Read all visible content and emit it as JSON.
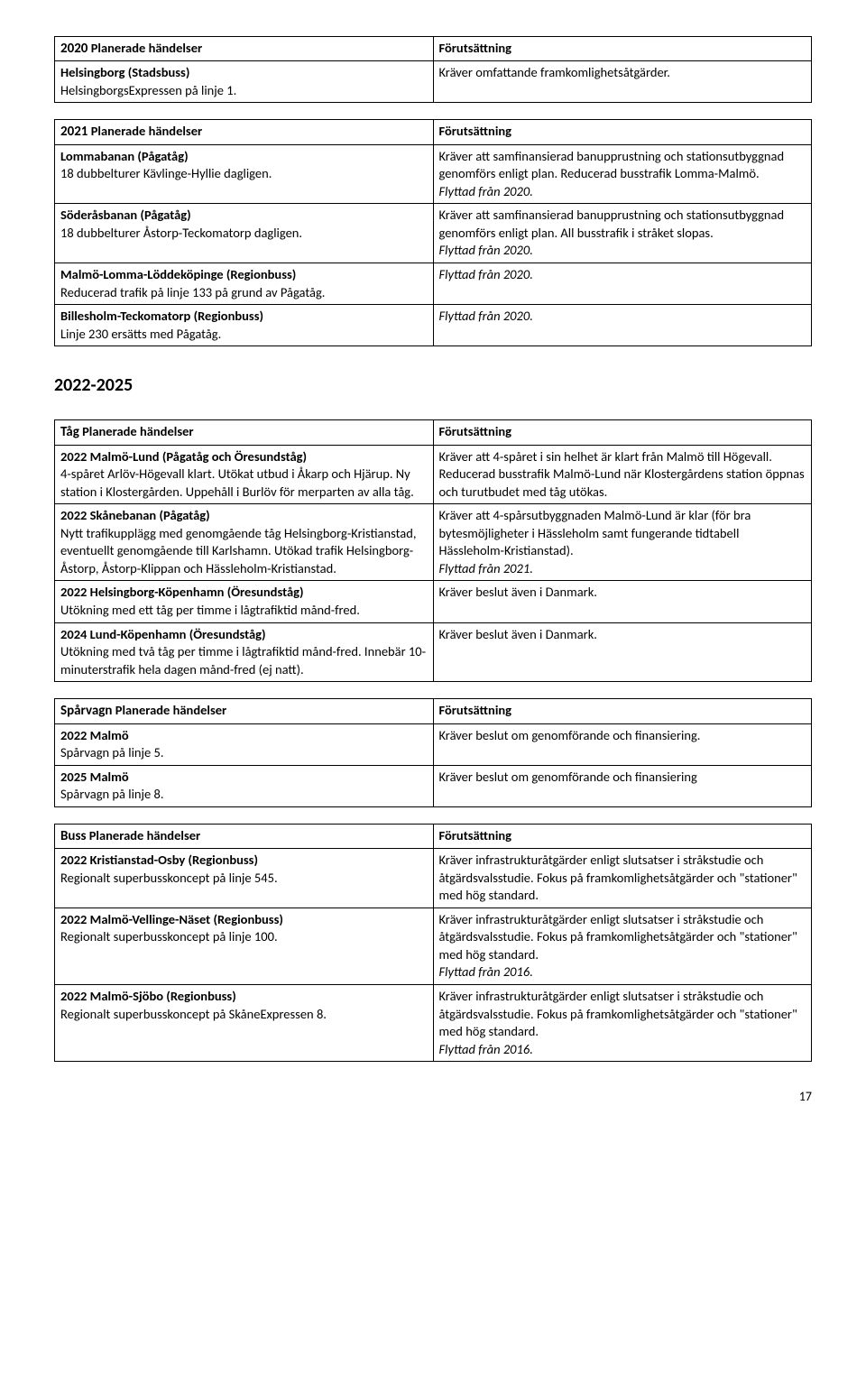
{
  "table1": {
    "header_left_strong": "2020",
    "header_left_rest": " Planerade händelser",
    "header_right": "Förutsättning",
    "rows": [
      {
        "l_title": "Helsingborg (Stadsbuss)",
        "l_body": "HelsingborgsExpressen på linje 1.",
        "r_body": "Kräver omfattande framkomlighetsåtgärder."
      }
    ]
  },
  "table2": {
    "header_left_strong": "2021",
    "header_left_rest": " Planerade händelser",
    "header_right": "Förutsättning",
    "rows": [
      {
        "l_title": "Lommabanan (Pågatåg)",
        "l_body": "18 dubbelturer Kävlinge-Hyllie dagligen.",
        "r_body": "Kräver att samfinansierad banupprustning och stationsutbyggnad genomförs enligt plan. Reducerad busstrafik Lomma-Malmö.",
        "r_italic": "Flyttad från 2020."
      },
      {
        "l_title": "Söderåsbanan (Pågatåg)",
        "l_body": "18 dubbelturer Åstorp-Teckomatorp dagligen.",
        "r_body": "Kräver att samfinansierad banupprustning och stationsutbyggnad genomförs enligt plan. All busstrafik i stråket slopas.",
        "r_italic": "Flyttad från 2020."
      },
      {
        "l_title": "Malmö-Lomma-Löddeköpinge (Regionbuss)",
        "l_body": "Reducerad trafik på linje 133 på grund av Pågatåg.",
        "r_italic": "Flyttad från 2020."
      },
      {
        "l_title": "Billesholm-Teckomatorp (Regionbuss)",
        "l_body": "Linje 230 ersätts med Pågatåg.",
        "r_italic": "Flyttad från 2020."
      }
    ]
  },
  "section_heading": "2022-2025",
  "table3": {
    "header_left_strong": "Tåg",
    "header_left_rest": " Planerade händelser",
    "header_right": "Förutsättning",
    "rows": [
      {
        "l_title": "2022 Malmö-Lund (Pågatåg och Öresundståg)",
        "l_body": "4-spåret Arlöv-Högevall klart. Utökat utbud i Åkarp och Hjärup. Ny station i Klostergården. Uppehåll i Burlöv för merparten av alla tåg.",
        "r_body": "Kräver att 4-spåret i sin helhet är klart från Malmö till Högevall. Reducerad busstrafik Malmö-Lund när Klostergårdens station öppnas och turutbudet med tåg utökas."
      },
      {
        "l_title": "2022 Skånebanan (Pågatåg)",
        "l_body": "Nytt trafikupplägg med genomgående tåg Helsingborg-Kristianstad, eventuellt genomgående till Karlshamn. Utökad trafik Helsingborg-Åstorp, Åstorp-Klippan och Hässleholm-Kristianstad.",
        "r_body": "Kräver att 4-spårsutbyggnaden Malmö-Lund är klar (för bra bytesmöjligheter i Hässleholm samt fungerande tidtabell Hässleholm-Kristianstad).",
        "r_italic": "Flyttad från 2021."
      },
      {
        "l_title": "2022 Helsingborg-Köpenhamn (Öresundståg)",
        "l_body": "Utökning med ett tåg per timme i lågtrafiktid månd-fred.",
        "r_body": "Kräver beslut även i Danmark."
      },
      {
        "l_title": "2024 Lund-Köpenhamn (Öresundståg)",
        "l_body": "Utökning med två tåg per timme i lågtrafiktid månd-fred. Innebär 10-minuterstrafik hela dagen månd-fred (ej natt).",
        "r_body": "Kräver beslut även i Danmark."
      }
    ]
  },
  "table4": {
    "header_left_strong": "Spårvagn",
    "header_left_rest": " Planerade händelser",
    "header_right": "Förutsättning",
    "rows": [
      {
        "l_title": "2022 Malmö",
        "l_body": "Spårvagn på linje 5.",
        "r_body": "Kräver beslut om genomförande och finansiering."
      },
      {
        "l_title": "2025 Malmö",
        "l_body": "Spårvagn på linje 8.",
        "r_body": "Kräver beslut om genomförande och finansiering"
      }
    ]
  },
  "table5": {
    "header_left_strong": "Buss",
    "header_left_rest": " Planerade händelser",
    "header_right": "Förutsättning",
    "rows": [
      {
        "l_title": "2022 Kristianstad-Osby (Regionbuss)",
        "l_body": "Regionalt superbusskoncept på linje 545.",
        "r_body": "Kräver infrastrukturåtgärder enligt slutsatser i stråkstudie och åtgärdsvalsstudie. Fokus på framkomlighetsåtgärder och \"stationer\" med hög standard."
      },
      {
        "l_title": "2022 Malmö-Vellinge-Näset (Regionbuss)",
        "l_body": "Regionalt superbusskoncept på linje 100.",
        "r_body": "Kräver infrastrukturåtgärder enligt slutsatser i stråkstudie och åtgärdsvalsstudie. Fokus på framkomlighetsåtgärder och \"stationer\" med hög standard.",
        "r_italic": "Flyttad från 2016."
      },
      {
        "l_title": "2022 Malmö-Sjöbo (Regionbuss)",
        "l_body": "Regionalt superbusskoncept på SkåneExpressen 8.",
        "r_body": "Kräver infrastrukturåtgärder enligt slutsatser i stråkstudie och åtgärdsvalsstudie. Fokus på framkomlighetsåtgärder och \"stationer\" med hög standard.",
        "r_italic": "Flyttad från 2016."
      }
    ]
  },
  "page_number": "17"
}
